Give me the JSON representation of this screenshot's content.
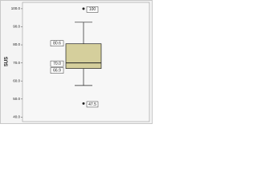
{
  "chart_data": {
    "type": "box",
    "ylabel": "SUS",
    "ylim": [
      37.5,
      103.5
    ],
    "yticks": [
      {
        "value": 40,
        "label": "40.0"
      },
      {
        "value": 50,
        "label": "50.0"
      },
      {
        "value": 60,
        "label": "60.0"
      },
      {
        "value": 70,
        "label": "70.0"
      },
      {
        "value": 80,
        "label": "80.0"
      },
      {
        "value": 90,
        "label": "90.0"
      },
      {
        "value": 100,
        "label": "100.0"
      }
    ],
    "color": "#d5cf9c",
    "box": {
      "whisker_low": 57.5,
      "q1": 66.9,
      "median": 70,
      "q3": 80.6,
      "whisker_high": 92.5,
      "value_labels": {
        "q1": "66.9",
        "median": "70.0",
        "q3": "80.6"
      },
      "outliers": [
        100,
        47.5
      ]
    }
  }
}
